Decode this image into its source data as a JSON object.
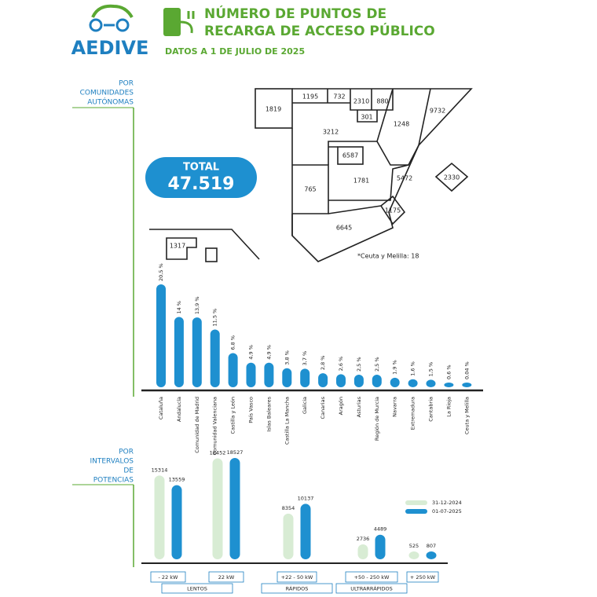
{
  "header": {
    "logo": "AEDIVE",
    "title": [
      "NÚMERO DE PUNTOS DE",
      "RECARGA DE ACCESO PÚBLICO"
    ],
    "subtitle": "DATOS A 1 DE JULIO DE 2025"
  },
  "sections": [
    [
      "POR",
      "COMUNIDADES",
      "AUTÓNOMAS"
    ],
    [
      "POR",
      "INTERVALOS",
      "DE",
      "POTENCIAS"
    ]
  ],
  "total": {
    "label": "TOTAL",
    "value": "47.519"
  },
  "map": {
    "labels": [
      1819,
      1195,
      732,
      2310,
      880,
      301,
      1248,
      9732,
      3212,
      6587,
      5472,
      2330,
      765,
      1781,
      1175,
      6645,
      1317
    ],
    "note": "*Ceuta y Melilla: 18"
  },
  "chart_data": [
    {
      "type": "bar",
      "categories": [
        "Cataluña",
        "Andalucía",
        "Comunidad de Madrid",
        "Comunidad Valenciana",
        "Castilla y León",
        "País Vasco",
        "Islas Baleares",
        "Castilla La Mancha",
        "Galicia",
        "Canarias",
        "Aragón",
        "Asturias",
        "Región de Murcia",
        "Navarra",
        "Extremadura",
        "Cantabria",
        "La Rioja",
        "Ceuta y Melilla"
      ],
      "values": [
        20.5,
        14,
        13.9,
        11.5,
        6.8,
        4.9,
        4.9,
        3.8,
        3.7,
        2.8,
        2.6,
        2.5,
        2.5,
        1.9,
        1.6,
        1.5,
        0.6,
        0.04
      ],
      "value_labels": [
        "20,5 %",
        "14 %",
        "13,9 %",
        "11,5 %",
        "6,8 %",
        "4,9 %",
        "4,9 %",
        "3,8 %",
        "3,7 %",
        "2,8 %",
        "2,6 %",
        "2,5 %",
        "2,5 %",
        "1,9 %",
        "1,6 %",
        "1,5 %",
        "0,6 %",
        "0,04 %"
      ],
      "color": "#1e90d0"
    },
    {
      "type": "grouped-bar",
      "categories": [
        "- 22 kW",
        "22 kW",
        "+22 - 50 kW",
        "+50 - 250 kW",
        "+ 250 kW"
      ],
      "groups": [
        "LENTOS",
        "RÁPIDOS",
        "ULTRARRÁPIDOS"
      ],
      "series": [
        {
          "name": "31-12-2024",
          "color": "#d8ecd4",
          "values": [
            15314,
            18452,
            8354,
            2736,
            525
          ]
        },
        {
          "name": "01-07-2025",
          "color": "#1e90d0",
          "values": [
            13559,
            18527,
            10137,
            4489,
            807
          ]
        }
      ],
      "legend": "right"
    }
  ]
}
